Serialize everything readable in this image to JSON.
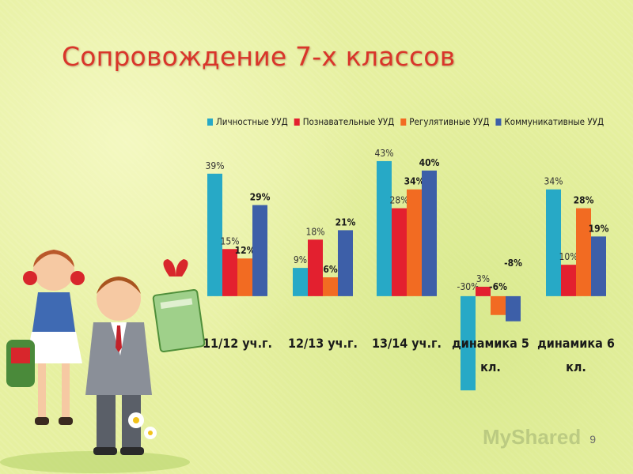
{
  "slide": {
    "title": "Сопровождение 7-х классов",
    "page_number": "9",
    "watermark": "MyShared"
  },
  "chart_data": {
    "type": "bar",
    "categories": [
      "11/12 уч.г.",
      "12/13 уч.г.",
      "13/14 уч.г.",
      "динамика 5 кл.",
      "динамика 6 кл."
    ],
    "category_lines": [
      [
        "11/12 уч.г."
      ],
      [
        "12/13 уч.г."
      ],
      [
        "13/14 уч.г."
      ],
      [
        "динамика 5",
        "кл."
      ],
      [
        "динамика 6",
        "кл."
      ]
    ],
    "series": [
      {
        "name": "Личностные УУД",
        "color": "#27a9c6",
        "values": [
          39,
          9,
          43,
          -30,
          34
        ],
        "labels": [
          "39%",
          "9%",
          "43%",
          "-30%",
          "34%"
        ]
      },
      {
        "name": "Познавательные УУД",
        "color": "#e3202f",
        "values": [
          15,
          18,
          28,
          3,
          10
        ],
        "labels": [
          "15%",
          "18%",
          "28%",
          "3%",
          "10%"
        ]
      },
      {
        "name": "Регулятивные УУД",
        "color": "#f26b22",
        "values": [
          12,
          6,
          34,
          -6,
          28
        ],
        "labels": [
          "12%",
          "6%",
          "34%",
          "-6%",
          "28%"
        ]
      },
      {
        "name": "Коммуникативные УУД",
        "color": "#3d5fa8",
        "values": [
          29,
          21,
          40,
          -8,
          19
        ],
        "labels": [
          "29%",
          "21%",
          "40%",
          "-8%",
          "19%"
        ]
      }
    ],
    "ylim": [
      -36,
      45
    ],
    "grid": false,
    "legend_position": "top",
    "title": "",
    "xlabel": "",
    "ylabel": ""
  }
}
